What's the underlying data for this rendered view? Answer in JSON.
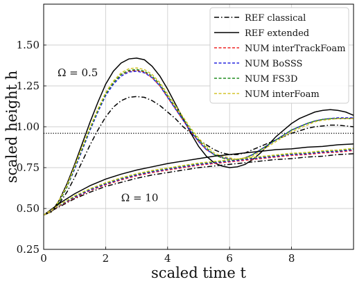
{
  "chart_data": {
    "type": "line",
    "title": "",
    "xlabel": "scaled time t",
    "ylabel": "scaled height h",
    "xlim": [
      0,
      10
    ],
    "ylim": [
      0.25,
      1.75
    ],
    "xticks": [
      "0",
      "2",
      "4",
      "6",
      "8"
    ],
    "xtick_values": [
      0,
      2,
      4,
      6,
      8
    ],
    "yticks": [
      "0.25",
      "0.50",
      "0.75",
      "1.00",
      "1.25",
      "1.50"
    ],
    "ytick_values": [
      0.25,
      0.5,
      0.75,
      1.0,
      1.25,
      1.5
    ],
    "grid": true,
    "legend_position": "top-right",
    "reference_line": {
      "y": 0.96,
      "style": "dotted",
      "color": "#000000"
    },
    "annotations": [
      {
        "text": "Ω = 0.5",
        "x": 1.1,
        "y": 1.31
      },
      {
        "text": "Ω = 10",
        "x": 3.1,
        "y": 0.545
      }
    ],
    "legend": [
      {
        "name": "REF classical",
        "color": "#000000",
        "dash": "dashdot"
      },
      {
        "name": "REF extended",
        "color": "#000000",
        "dash": "solid"
      },
      {
        "name": "NUM interTrackFoam",
        "color": "#ee2222",
        "dash": "dashed"
      },
      {
        "name": "NUM BoSSS",
        "color": "#2222dd",
        "dash": "dashed"
      },
      {
        "name": "NUM FS3D",
        "color": "#1e8c1e",
        "dash": "dashed"
      },
      {
        "name": "NUM interFoam",
        "color": "#d4c42a",
        "dash": "dashed"
      }
    ],
    "series": [
      {
        "group": "Ω = 0.5",
        "legend": "REF classical",
        "color": "#000000",
        "dash": "dashdot",
        "x": [
          0,
          0.25,
          0.5,
          0.75,
          1,
          1.25,
          1.5,
          1.75,
          2,
          2.25,
          2.5,
          2.75,
          3,
          3.25,
          3.5,
          3.75,
          4,
          4.25,
          4.5,
          4.75,
          5,
          5.25,
          5.5,
          5.75,
          6,
          6.25,
          6.5,
          6.75,
          7,
          7.25,
          7.5,
          7.75,
          8,
          8.25,
          8.5,
          8.75,
          9,
          9.25,
          9.5,
          9.75,
          10
        ],
        "y": [
          0.46,
          0.48,
          0.53,
          0.6,
          0.69,
          0.79,
          0.89,
          0.98,
          1.06,
          1.12,
          1.16,
          1.18,
          1.185,
          1.18,
          1.16,
          1.13,
          1.09,
          1.05,
          1.0,
          0.96,
          0.92,
          0.89,
          0.86,
          0.84,
          0.83,
          0.83,
          0.84,
          0.86,
          0.88,
          0.9,
          0.92,
          0.94,
          0.96,
          0.975,
          0.99,
          1.0,
          1.005,
          1.01,
          1.01,
          1.005,
          1.0
        ]
      },
      {
        "group": "Ω = 0.5",
        "legend": "REF extended",
        "color": "#000000",
        "dash": "solid",
        "x": [
          0,
          0.25,
          0.5,
          0.75,
          1,
          1.25,
          1.5,
          1.75,
          2,
          2.25,
          2.5,
          2.75,
          3,
          3.25,
          3.5,
          3.75,
          4,
          4.25,
          4.5,
          4.75,
          5,
          5.25,
          5.5,
          5.75,
          6,
          6.25,
          6.5,
          6.75,
          7,
          7.25,
          7.5,
          7.75,
          8,
          8.25,
          8.5,
          8.75,
          9,
          9.25,
          9.5,
          9.75,
          10
        ],
        "y": [
          0.46,
          0.48,
          0.55,
          0.65,
          0.77,
          0.9,
          1.03,
          1.15,
          1.26,
          1.34,
          1.39,
          1.415,
          1.42,
          1.41,
          1.37,
          1.31,
          1.23,
          1.14,
          1.05,
          0.96,
          0.88,
          0.82,
          0.78,
          0.76,
          0.75,
          0.755,
          0.77,
          0.8,
          0.84,
          0.89,
          0.94,
          0.98,
          1.02,
          1.05,
          1.07,
          1.09,
          1.1,
          1.105,
          1.1,
          1.09,
          1.07
        ]
      },
      {
        "group": "Ω = 0.5",
        "legend": "NUM interTrackFoam",
        "color": "#ee2222",
        "dash": "dashed",
        "x": [
          0,
          0.25,
          0.5,
          0.75,
          1,
          1.25,
          1.5,
          1.75,
          2,
          2.25,
          2.5,
          2.75,
          3,
          3.25,
          3.5,
          3.75,
          4,
          4.25,
          4.5,
          4.75,
          5,
          5.25,
          5.5,
          5.75,
          6,
          6.25,
          6.5,
          6.75,
          7,
          7.25,
          7.5,
          7.75,
          8,
          8.25,
          8.5,
          8.75,
          9,
          9.25,
          9.5,
          9.75,
          10
        ],
        "y": [
          0.46,
          0.48,
          0.54,
          0.63,
          0.75,
          0.87,
          0.99,
          1.1,
          1.2,
          1.27,
          1.32,
          1.34,
          1.345,
          1.335,
          1.3,
          1.25,
          1.18,
          1.11,
          1.04,
          0.97,
          0.91,
          0.86,
          0.83,
          0.81,
          0.8,
          0.8,
          0.81,
          0.83,
          0.86,
          0.89,
          0.92,
          0.95,
          0.98,
          1.0,
          1.02,
          1.035,
          1.045,
          1.05,
          1.05,
          1.05,
          1.05
        ]
      },
      {
        "group": "Ω = 0.5",
        "legend": "NUM BoSSS",
        "color": "#2222dd",
        "dash": "dashed",
        "x": [
          0,
          0.25,
          0.5,
          0.75,
          1,
          1.25,
          1.5,
          1.75,
          2,
          2.25,
          2.5,
          2.75,
          3,
          3.25,
          3.5,
          3.75,
          4,
          4.25,
          4.5,
          4.75,
          5,
          5.25,
          5.5,
          5.75,
          6,
          6.25,
          6.5,
          6.75,
          7,
          7.25,
          7.5,
          7.75,
          8,
          8.25,
          8.5,
          8.75,
          9,
          9.25,
          9.5,
          9.75,
          10
        ],
        "y": [
          0.46,
          0.48,
          0.54,
          0.63,
          0.74,
          0.86,
          0.98,
          1.09,
          1.19,
          1.26,
          1.31,
          1.335,
          1.34,
          1.33,
          1.3,
          1.25,
          1.18,
          1.11,
          1.04,
          0.97,
          0.91,
          0.86,
          0.83,
          0.815,
          0.805,
          0.8,
          0.81,
          0.83,
          0.86,
          0.89,
          0.92,
          0.95,
          0.98,
          1.0,
          1.02,
          1.035,
          1.045,
          1.05,
          1.055,
          1.055,
          1.055
        ]
      },
      {
        "group": "Ω = 0.5",
        "legend": "NUM FS3D",
        "color": "#1e8c1e",
        "dash": "dashed",
        "x": [
          0,
          0.25,
          0.5,
          0.75,
          1,
          1.25,
          1.5,
          1.75,
          2,
          2.25,
          2.5,
          2.75,
          3,
          3.25,
          3.5,
          3.75,
          4,
          4.25,
          4.5,
          4.75,
          5,
          5.25,
          5.5,
          5.75,
          6,
          6.25,
          6.5,
          6.75,
          7,
          7.25,
          7.5,
          7.75,
          8,
          8.25,
          8.5,
          8.75,
          9,
          9.25,
          9.5,
          9.75,
          10
        ],
        "y": [
          0.46,
          0.48,
          0.54,
          0.63,
          0.75,
          0.87,
          0.99,
          1.1,
          1.2,
          1.27,
          1.32,
          1.345,
          1.35,
          1.34,
          1.31,
          1.26,
          1.19,
          1.12,
          1.05,
          0.98,
          0.92,
          0.87,
          0.83,
          0.81,
          0.8,
          0.8,
          0.81,
          0.83,
          0.86,
          0.89,
          0.92,
          0.95,
          0.98,
          1.0,
          1.02,
          1.035,
          1.045,
          1.05,
          1.05,
          1.05,
          1.05
        ]
      },
      {
        "group": "Ω = 0.5",
        "legend": "NUM interFoam",
        "color": "#d4c42a",
        "dash": "dashed",
        "x": [
          0,
          0.25,
          0.5,
          0.75,
          1,
          1.25,
          1.5,
          1.75,
          2,
          2.25,
          2.5,
          2.75,
          3,
          3.25,
          3.5,
          3.75,
          4,
          4.25,
          4.5,
          4.75,
          5,
          5.25,
          5.5,
          5.75,
          6,
          6.25,
          6.5,
          6.75,
          7,
          7.25,
          7.5,
          7.75,
          8,
          8.25,
          8.5,
          8.75,
          9,
          9.25,
          9.5,
          9.75,
          10
        ],
        "y": [
          0.46,
          0.48,
          0.55,
          0.64,
          0.76,
          0.88,
          1.0,
          1.11,
          1.21,
          1.28,
          1.33,
          1.355,
          1.36,
          1.35,
          1.32,
          1.27,
          1.2,
          1.13,
          1.06,
          0.99,
          0.93,
          0.88,
          0.84,
          0.82,
          0.81,
          0.8,
          0.81,
          0.82,
          0.85,
          0.88,
          0.91,
          0.94,
          0.97,
          0.99,
          1.01,
          1.03,
          1.04,
          1.045,
          1.05,
          1.05,
          1.05
        ]
      },
      {
        "group": "Ω = 10",
        "legend": "REF classical",
        "color": "#000000",
        "dash": "dashdot",
        "x": [
          0,
          0.5,
          1,
          1.5,
          2,
          2.5,
          3,
          3.5,
          4,
          4.5,
          5,
          5.5,
          6,
          6.5,
          7,
          7.5,
          8,
          8.5,
          9,
          9.5,
          10
        ],
        "y": [
          0.46,
          0.51,
          0.56,
          0.6,
          0.635,
          0.66,
          0.685,
          0.705,
          0.72,
          0.735,
          0.75,
          0.76,
          0.77,
          0.78,
          0.79,
          0.8,
          0.805,
          0.815,
          0.82,
          0.83,
          0.835
        ]
      },
      {
        "group": "Ω = 10",
        "legend": "REF extended",
        "color": "#000000",
        "dash": "solid",
        "x": [
          0,
          0.5,
          1,
          1.5,
          2,
          2.5,
          3,
          3.5,
          4,
          4.5,
          5,
          5.5,
          6,
          6.5,
          7,
          7.5,
          8,
          8.5,
          9,
          9.5,
          10
        ],
        "y": [
          0.46,
          0.53,
          0.59,
          0.64,
          0.68,
          0.71,
          0.735,
          0.755,
          0.775,
          0.79,
          0.805,
          0.82,
          0.83,
          0.84,
          0.85,
          0.86,
          0.865,
          0.875,
          0.88,
          0.89,
          0.895
        ]
      },
      {
        "group": "Ω = 10",
        "legend": "NUM interTrackFoam",
        "color": "#ee2222",
        "dash": "dashed",
        "x": [
          0,
          0.5,
          1,
          1.5,
          2,
          2.5,
          3,
          3.5,
          4,
          4.5,
          5,
          5.5,
          6,
          6.5,
          7,
          7.5,
          8,
          8.5,
          9,
          9.5,
          10
        ],
        "y": [
          0.46,
          0.515,
          0.565,
          0.61,
          0.645,
          0.675,
          0.7,
          0.72,
          0.735,
          0.75,
          0.765,
          0.775,
          0.785,
          0.795,
          0.805,
          0.815,
          0.825,
          0.83,
          0.84,
          0.845,
          0.855
        ]
      },
      {
        "group": "Ω = 10",
        "legend": "NUM BoSSS",
        "color": "#2222dd",
        "dash": "dashed",
        "x": [
          0,
          0.5,
          1,
          1.5,
          2,
          2.5,
          3,
          3.5,
          4,
          4.5,
          5,
          5.5,
          6,
          6.5,
          7,
          7.5,
          8,
          8.5,
          9,
          9.5,
          10
        ],
        "y": [
          0.46,
          0.518,
          0.57,
          0.614,
          0.65,
          0.68,
          0.705,
          0.725,
          0.74,
          0.755,
          0.77,
          0.78,
          0.79,
          0.8,
          0.81,
          0.82,
          0.83,
          0.835,
          0.845,
          0.85,
          0.86
        ]
      },
      {
        "group": "Ω = 10",
        "legend": "NUM FS3D",
        "color": "#1e8c1e",
        "dash": "dashed",
        "x": [
          0,
          0.5,
          1,
          1.5,
          2,
          2.5,
          3,
          3.5,
          4,
          4.5,
          5,
          5.5,
          6,
          6.5,
          7,
          7.5,
          8,
          8.5,
          9,
          9.5,
          10
        ],
        "y": [
          0.46,
          0.52,
          0.575,
          0.62,
          0.655,
          0.685,
          0.71,
          0.73,
          0.745,
          0.76,
          0.775,
          0.785,
          0.795,
          0.805,
          0.815,
          0.825,
          0.835,
          0.84,
          0.85,
          0.855,
          0.865
        ]
      },
      {
        "group": "Ω = 10",
        "legend": "NUM interFoam",
        "color": "#d4c42a",
        "dash": "dashed",
        "x": [
          0,
          0.5,
          1,
          1.5,
          2,
          2.5,
          3,
          3.5,
          4,
          4.5,
          5,
          5.5,
          6,
          6.5,
          7,
          7.5,
          8,
          8.5,
          9,
          9.5,
          10
        ],
        "y": [
          0.46,
          0.522,
          0.578,
          0.622,
          0.658,
          0.688,
          0.713,
          0.733,
          0.748,
          0.763,
          0.778,
          0.788,
          0.798,
          0.808,
          0.818,
          0.828,
          0.838,
          0.843,
          0.853,
          0.858,
          0.868
        ]
      }
    ]
  }
}
